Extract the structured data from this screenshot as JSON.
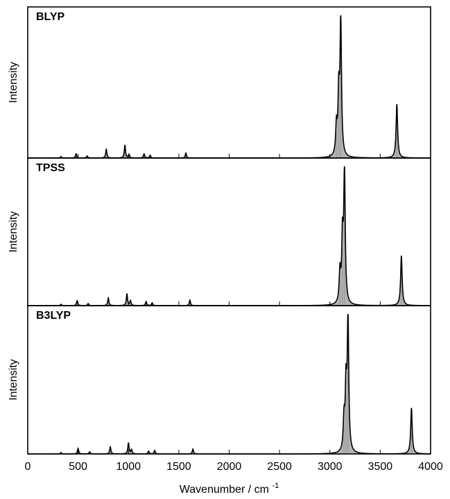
{
  "chart_data": {
    "type": "line",
    "xlabel": "Wavenumber / cm",
    "xlabel_superscript": "-1",
    "ylabel": "Intensity",
    "xlim": [
      0,
      4000
    ],
    "ylim": [
      0,
      1
    ],
    "xticks": [
      0,
      500,
      1000,
      1500,
      2000,
      2500,
      3000,
      3500,
      4000
    ],
    "x_tick_labels": [
      "0",
      "500",
      "1000",
      "1500",
      "2000",
      "2500",
      "3000",
      "3500",
      "4000"
    ],
    "grid": false,
    "legend": "none",
    "line_color": "#000000",
    "stick_fill": "#b3b3b3",
    "panels": [
      {
        "label": "BLYP",
        "peaks": [
          {
            "x": 330,
            "y": 0.01
          },
          {
            "x": 480,
            "y": 0.03
          },
          {
            "x": 590,
            "y": 0.015
          },
          {
            "x": 780,
            "y": 0.06
          },
          {
            "x": 965,
            "y": 0.09
          },
          {
            "x": 1005,
            "y": 0.025
          },
          {
            "x": 1155,
            "y": 0.03
          },
          {
            "x": 1215,
            "y": 0.02
          },
          {
            "x": 1570,
            "y": 0.035
          },
          {
            "x": 3065,
            "y": 0.2
          },
          {
            "x": 3088,
            "y": 0.42
          },
          {
            "x": 3108,
            "y": 0.95
          },
          {
            "x": 3665,
            "y": 0.38
          }
        ]
      },
      {
        "label": "TPSS",
        "peaks": [
          {
            "x": 330,
            "y": 0.01
          },
          {
            "x": 490,
            "y": 0.035
          },
          {
            "x": 600,
            "y": 0.015
          },
          {
            "x": 800,
            "y": 0.055
          },
          {
            "x": 985,
            "y": 0.085
          },
          {
            "x": 1020,
            "y": 0.035
          },
          {
            "x": 1175,
            "y": 0.03
          },
          {
            "x": 1235,
            "y": 0.02
          },
          {
            "x": 1610,
            "y": 0.04
          },
          {
            "x": 3100,
            "y": 0.22
          },
          {
            "x": 3125,
            "y": 0.45
          },
          {
            "x": 3145,
            "y": 0.95
          },
          {
            "x": 3710,
            "y": 0.36
          }
        ]
      },
      {
        "label": "B3LYP",
        "peaks": [
          {
            "x": 330,
            "y": 0.01
          },
          {
            "x": 500,
            "y": 0.04
          },
          {
            "x": 615,
            "y": 0.015
          },
          {
            "x": 820,
            "y": 0.05
          },
          {
            "x": 1000,
            "y": 0.08
          },
          {
            "x": 1030,
            "y": 0.03
          },
          {
            "x": 1200,
            "y": 0.02
          },
          {
            "x": 1260,
            "y": 0.025
          },
          {
            "x": 1640,
            "y": 0.035
          },
          {
            "x": 3140,
            "y": 0.22
          },
          {
            "x": 3160,
            "y": 0.45
          },
          {
            "x": 3180,
            "y": 0.95
          },
          {
            "x": 3810,
            "y": 0.33
          }
        ]
      }
    ]
  }
}
